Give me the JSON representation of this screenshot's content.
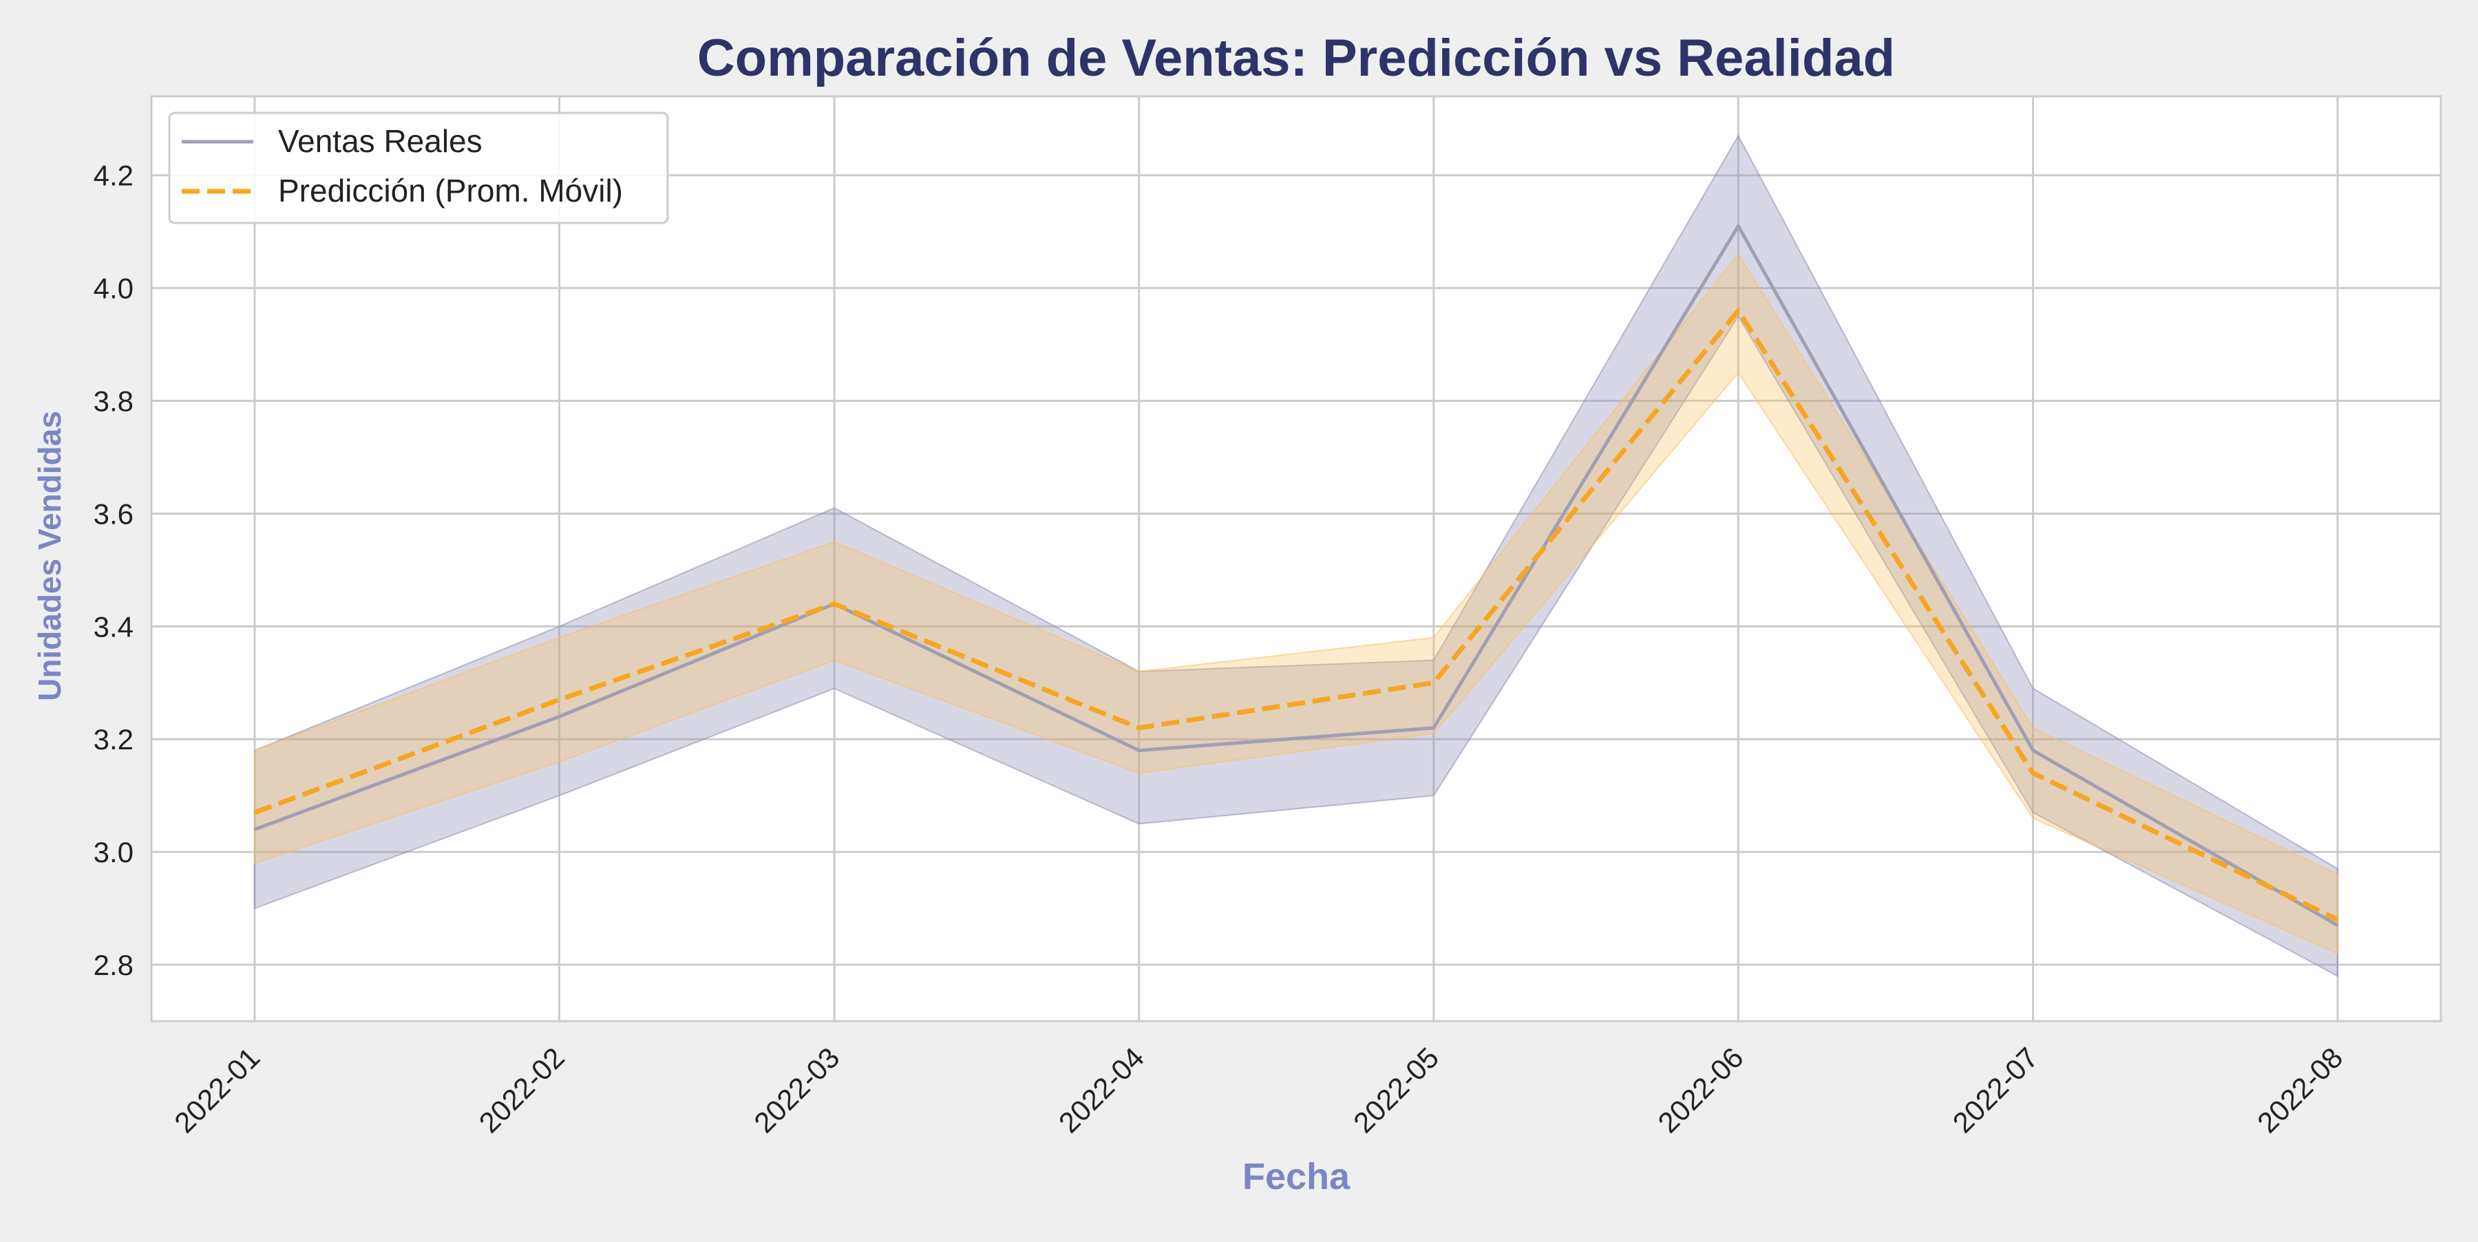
{
  "chart_data": {
    "type": "line",
    "title": "Comparación de Ventas: Predicción vs Realidad",
    "xlabel": "Fecha",
    "ylabel": "Unidades Vendidas",
    "x": [
      "2022-01",
      "2022-02",
      "2022-03",
      "2022-04",
      "2022-05",
      "2022-06",
      "2022-07",
      "2022-08"
    ],
    "x_positions_days": [
      0,
      31,
      59,
      90,
      120,
      151,
      181,
      212
    ],
    "ylim": [
      2.7,
      4.34
    ],
    "yticks": [
      "2.8",
      "3.0",
      "3.2",
      "3.4",
      "3.6",
      "3.8",
      "4.0",
      "4.2"
    ],
    "ytick_values": [
      2.8,
      3.0,
      3.2,
      3.4,
      3.6,
      3.8,
      4.0,
      4.2
    ],
    "grid": true,
    "legend_position": "top-left",
    "series": [
      {
        "name": "Ventas Reales",
        "style": "solid",
        "color": "#a09fb3",
        "band_color": "#8b8bb5",
        "values": [
          3.04,
          3.24,
          3.44,
          3.18,
          3.22,
          4.11,
          3.18,
          2.87
        ],
        "band_lower": [
          2.9,
          3.1,
          3.29,
          3.05,
          3.1,
          3.95,
          3.07,
          2.78
        ],
        "band_upper": [
          3.18,
          3.4,
          3.61,
          3.32,
          3.34,
          4.27,
          3.29,
          2.97
        ]
      },
      {
        "name": "Predicción (Prom. Móvil)",
        "style": "dashed",
        "color": "#f5a623",
        "band_color": "#f8c061",
        "values": [
          3.07,
          3.27,
          3.44,
          3.22,
          3.3,
          3.96,
          3.14,
          2.88
        ],
        "band_lower": [
          2.98,
          3.16,
          3.34,
          3.14,
          3.21,
          3.85,
          3.06,
          2.82
        ],
        "band_upper": [
          3.18,
          3.38,
          3.55,
          3.32,
          3.38,
          4.06,
          3.22,
          2.96
        ]
      }
    ],
    "colors": {
      "title": "#2e3469",
      "axis_label": "#7b86c4",
      "tick_label": "#222222",
      "grid": "#cccccc",
      "plot_bg": "#ffffff",
      "fig_bg": "#efefef"
    }
  }
}
